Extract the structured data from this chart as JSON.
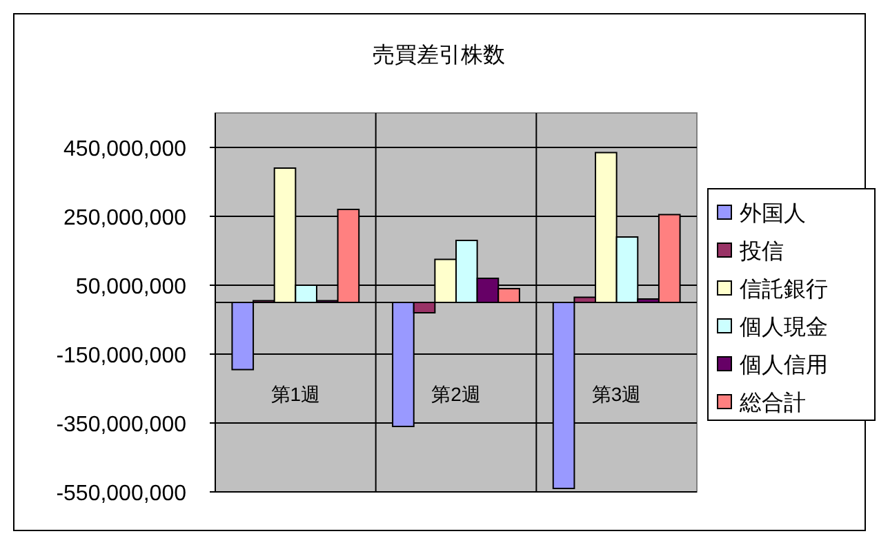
{
  "chart_data": {
    "type": "bar",
    "title": "売買差引株数",
    "categories": [
      "第1週",
      "第2週",
      "第3週"
    ],
    "series": [
      {
        "name": "外国人",
        "color": "#9999ff",
        "values": [
          -195000000,
          -360000000,
          -540000000
        ]
      },
      {
        "name": "投信",
        "color": "#993366",
        "values": [
          5000000,
          -30000000,
          15000000
        ]
      },
      {
        "name": "信託銀行",
        "color": "#ffffcc",
        "values": [
          390000000,
          125000000,
          435000000
        ]
      },
      {
        "name": "個人現金",
        "color": "#ccffff",
        "values": [
          50000000,
          180000000,
          190000000
        ]
      },
      {
        "name": "個人信用",
        "color": "#660066",
        "values": [
          5000000,
          70000000,
          10000000
        ]
      },
      {
        "name": "総合計",
        "color": "#ff8080",
        "values": [
          270000000,
          40000000,
          255000000
        ]
      }
    ],
    "ylim": [
      -550000000,
      550000000
    ],
    "yticks": [
      {
        "value": 450000000,
        "label": "450,000,000"
      },
      {
        "value": 250000000,
        "label": "250,000,000"
      },
      {
        "value": 50000000,
        "label": "50,000,000"
      },
      {
        "value": -150000000,
        "label": "-150,000,000"
      },
      {
        "value": -350000000,
        "label": "-350,000,000"
      },
      {
        "value": -550000000,
        "label": "-550,000,000"
      }
    ],
    "grid": true,
    "legend": "right"
  }
}
